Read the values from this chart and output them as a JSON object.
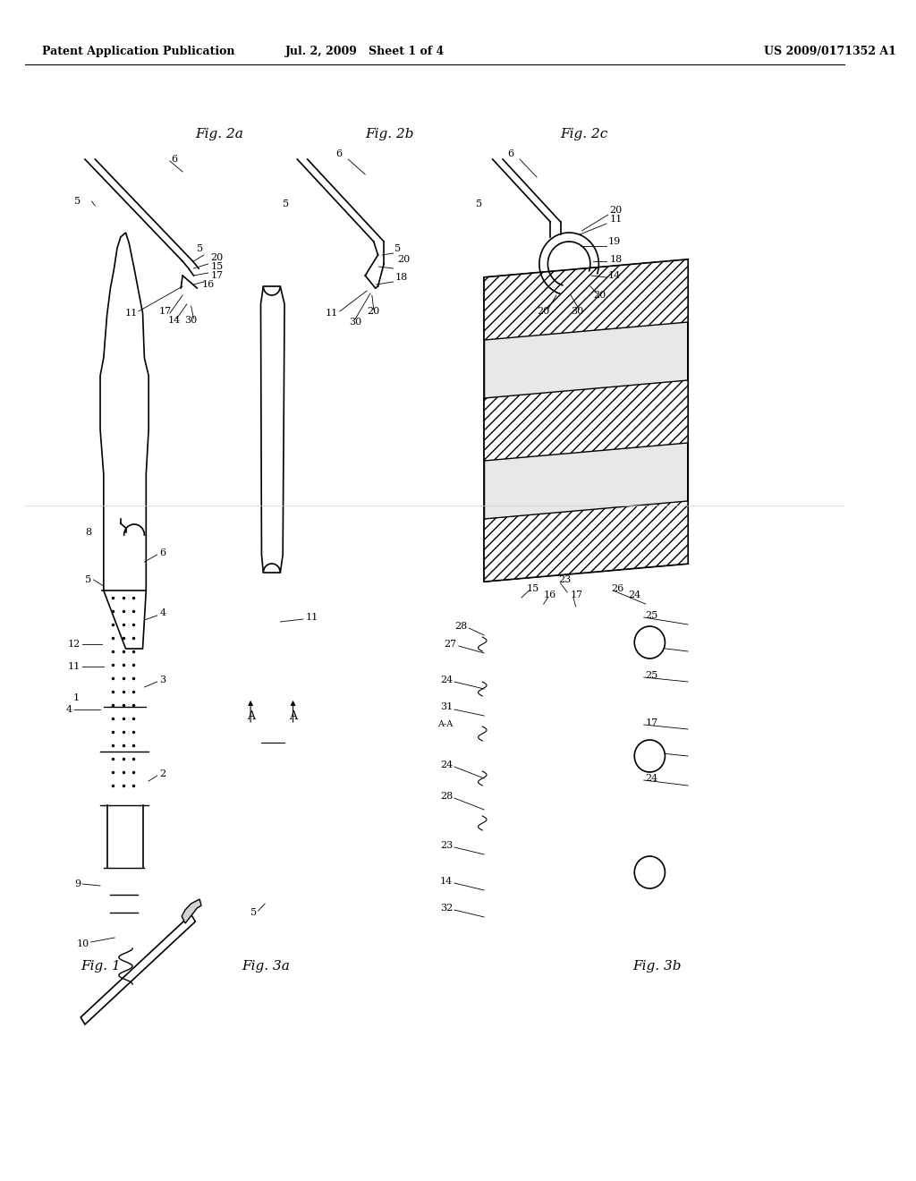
{
  "bg_color": "#ffffff",
  "header_left": "Patent Application Publication",
  "header_mid": "Jul. 2, 2009   Sheet 1 of 4",
  "header_right": "US 2009/0171352 A1",
  "fig_labels": [
    "Fig. 2a",
    "Fig. 2b",
    "Fig. 2c",
    "Fig. 1",
    "Fig. 3a",
    "Fig. 3b"
  ]
}
